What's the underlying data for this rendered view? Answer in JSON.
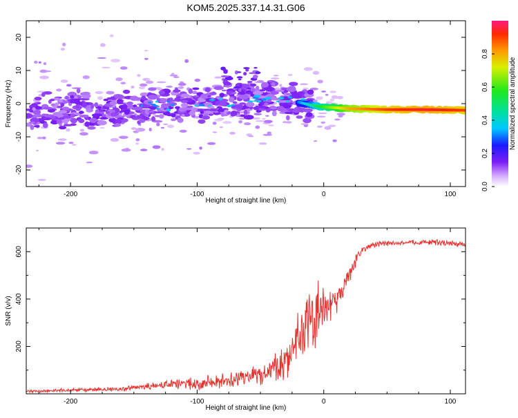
{
  "title": "KOM5.2025.337.14.31.G06",
  "chart_data": [
    {
      "type": "heatmap",
      "title": "KOM5.2025.337.14.31.G06",
      "xlabel": "Height of straight line (km)",
      "ylabel": "Frequency (Hz)",
      "xlim": [
        -235,
        112
      ],
      "ylim": [
        -25,
        25
      ],
      "xticks": [
        -200,
        -100,
        0,
        100
      ],
      "yticks": [
        20,
        10,
        0,
        -10,
        -20
      ],
      "colorbar": {
        "label": "Normalized spectral amplitude",
        "range": [
          0,
          1
        ],
        "ticks": [
          "0.0",
          "0.2",
          "0.4",
          "0.6",
          "0.8"
        ],
        "tick_values": [
          0.0,
          0.2,
          0.4,
          0.6,
          0.8
        ]
      },
      "ridge": {
        "description": "dominant spectral ridge (frequency vs height)",
        "x": [
          -235,
          -200,
          -150,
          -120,
          -100,
          -80,
          -60,
          -40,
          -20,
          -10,
          0,
          20,
          50,
          80,
          112
        ],
        "y": [
          -3,
          -2,
          -1.5,
          -0.5,
          -0.5,
          0,
          1,
          1.5,
          0.5,
          -0.5,
          -1,
          -1.5,
          -1.8,
          -1.8,
          -2
        ],
        "amplitude": [
          0.15,
          0.15,
          0.18,
          0.2,
          0.2,
          0.22,
          0.25,
          0.28,
          0.3,
          0.45,
          0.6,
          0.8,
          0.9,
          0.95,
          0.9
        ]
      }
    },
    {
      "type": "line",
      "xlabel": "Height of straight line (km)",
      "ylabel": "SNR (v/v)",
      "xlim": [
        -235,
        112
      ],
      "ylim": [
        0,
        700
      ],
      "xticks": [
        -200,
        -100,
        0,
        100
      ],
      "yticks": [
        200,
        400,
        600
      ],
      "series": [
        {
          "name": "SNR",
          "color": "#e8302d",
          "x": [
            -235,
            -200,
            -160,
            -140,
            -120,
            -100,
            -80,
            -60,
            -40,
            -30,
            -20,
            -15,
            -10,
            -5,
            0,
            5,
            10,
            15,
            20,
            25,
            30,
            40,
            50,
            60,
            70,
            80,
            90,
            100,
            112
          ],
          "y": [
            10,
            15,
            20,
            30,
            40,
            45,
            55,
            70,
            100,
            150,
            230,
            280,
            310,
            330,
            350,
            380,
            400,
            430,
            500,
            560,
            610,
            630,
            635,
            635,
            640,
            640,
            640,
            635,
            630
          ],
          "noise": [
            5,
            8,
            10,
            15,
            20,
            25,
            30,
            35,
            60,
            90,
            120,
            130,
            140,
            130,
            110,
            90,
            70,
            50,
            40,
            25,
            15,
            12,
            10,
            10,
            10,
            10,
            15,
            12,
            12
          ]
        }
      ]
    }
  ]
}
